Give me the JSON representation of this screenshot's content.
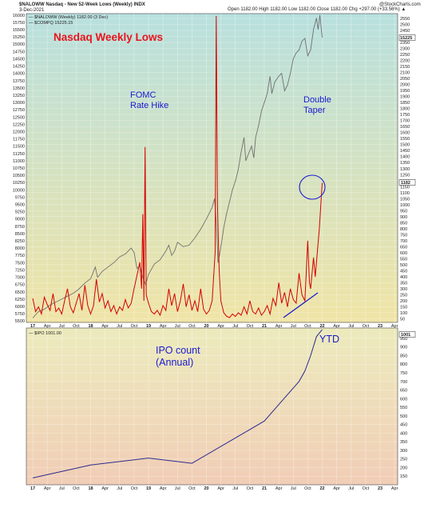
{
  "header": {
    "symbol_line": "$NALOWW Nasdaq - New 52-Week Lows (Weekly) INDX",
    "date": "3-Dec-2021",
    "ohlc": "Open 1182.00 High 1182.00 Low 1182.00 Close 1182.00 Chg +297.00 (+33.56%) ▲",
    "credit": "@StockCharts.com",
    "legend_main": "— $NALOWW (Weekly) 1182.00 (3 Dec)",
    "legend_compq": "— $COMPQ 15225.15",
    "legend_ipo": "— $IPO 1001.00"
  },
  "annotations": {
    "title": "Nasdaq Weekly Lows",
    "fomc": "FOMC\nRate Hike",
    "double_taper": "Double\nTaper",
    "ipo_label": "IPO count\n(Annual)",
    "ytd": "YTD"
  },
  "colors": {
    "lows_line": "#d40000",
    "compq_line": "#707070",
    "ipo_line": "#2a2a8f",
    "annotation_red": "#e8141e",
    "annotation_blue": "#1a1ad0",
    "top_bg_top": "#b8e0de",
    "top_bg_bottom": "#f0e4a6",
    "bottom_bg_top": "#ecebbd",
    "bottom_bg_bottom": "#f1cdb6"
  },
  "chart_data": [
    {
      "type": "line",
      "panel": "top",
      "x_tick_labels": [
        "17",
        "Apr",
        "Jul",
        "Oct",
        "18",
        "Apr",
        "Jul",
        "Oct",
        "19",
        "Apr",
        "Jul",
        "Oct",
        "20",
        "Apr",
        "Jul",
        "Oct",
        "21",
        "Apr",
        "Jul",
        "Oct",
        "22",
        "Apr",
        "Jul",
        "Oct",
        "23",
        "Apr"
      ],
      "left_axis": {
        "label_values": [
          5500,
          5750,
          6000,
          6250,
          6500,
          6750,
          7000,
          7250,
          7500,
          7750,
          8000,
          8250,
          8500,
          8750,
          9000,
          9250,
          9500,
          9750,
          10000,
          10250,
          10500,
          10750,
          11000,
          11250,
          11500,
          11750,
          12000,
          12250,
          12500,
          12750,
          13000,
          13250,
          13500,
          13750,
          14000,
          14250,
          14500,
          14750,
          15000,
          15250,
          15500,
          15750,
          16000
        ],
        "ylim": [
          5450,
          16050
        ]
      },
      "right_axis": {
        "label_values": [
          50,
          100,
          150,
          200,
          250,
          300,
          350,
          400,
          450,
          500,
          550,
          600,
          650,
          700,
          750,
          800,
          850,
          900,
          950,
          1000,
          1050,
          1100,
          1150,
          1200,
          1250,
          1300,
          1350,
          1400,
          1450,
          1500,
          1550,
          1600,
          1650,
          1700,
          1750,
          1800,
          1850,
          1900,
          1950,
          2000,
          2050,
          2100,
          2150,
          2200,
          2250,
          2300,
          2350,
          2400,
          2450,
          2500,
          2550
        ],
        "ylim": [
          20,
          2590
        ]
      },
      "series": [
        {
          "name": "$NALOWW (Weekly)",
          "axis": "right",
          "last_value": 1182,
          "points": [
            [
              2017.0,
              220
            ],
            [
              2017.05,
              110
            ],
            [
              2017.1,
              150
            ],
            [
              2017.15,
              90
            ],
            [
              2017.2,
              230
            ],
            [
              2017.25,
              170
            ],
            [
              2017.3,
              120
            ],
            [
              2017.35,
              260
            ],
            [
              2017.4,
              110
            ],
            [
              2017.45,
              140
            ],
            [
              2017.5,
              90
            ],
            [
              2017.55,
              200
            ],
            [
              2017.6,
              300
            ],
            [
              2017.65,
              150
            ],
            [
              2017.7,
              100
            ],
            [
              2017.75,
              180
            ],
            [
              2017.8,
              260
            ],
            [
              2017.85,
              120
            ],
            [
              2017.9,
              330
            ],
            [
              2017.95,
              160
            ],
            [
              2018.0,
              90
            ],
            [
              2018.05,
              160
            ],
            [
              2018.1,
              380
            ],
            [
              2018.15,
              190
            ],
            [
              2018.2,
              260
            ],
            [
              2018.25,
              140
            ],
            [
              2018.3,
              200
            ],
            [
              2018.35,
              110
            ],
            [
              2018.4,
              160
            ],
            [
              2018.45,
              90
            ],
            [
              2018.5,
              150
            ],
            [
              2018.55,
              120
            ],
            [
              2018.6,
              210
            ],
            [
              2018.65,
              140
            ],
            [
              2018.7,
              180
            ],
            [
              2018.75,
              300
            ],
            [
              2018.8,
              410
            ],
            [
              2018.85,
              520
            ],
            [
              2018.88,
              300
            ],
            [
              2018.9,
              920
            ],
            [
              2018.92,
              200
            ],
            [
              2018.94,
              1480
            ],
            [
              2018.96,
              250
            ],
            [
              2019.0,
              180
            ],
            [
              2019.05,
              110
            ],
            [
              2019.1,
              90
            ],
            [
              2019.15,
              120
            ],
            [
              2019.2,
              80
            ],
            [
              2019.25,
              160
            ],
            [
              2019.3,
              120
            ],
            [
              2019.35,
              300
            ],
            [
              2019.4,
              160
            ],
            [
              2019.45,
              260
            ],
            [
              2019.5,
              110
            ],
            [
              2019.55,
              200
            ],
            [
              2019.6,
              340
            ],
            [
              2019.65,
              150
            ],
            [
              2019.7,
              250
            ],
            [
              2019.75,
              120
            ],
            [
              2019.8,
              200
            ],
            [
              2019.85,
              110
            ],
            [
              2019.9,
              300
            ],
            [
              2019.95,
              130
            ],
            [
              2020.0,
              90
            ],
            [
              2020.05,
              120
            ],
            [
              2020.1,
              200
            ],
            [
              2020.15,
              600
            ],
            [
              2020.17,
              2570
            ],
            [
              2020.19,
              1000
            ],
            [
              2020.22,
              450
            ],
            [
              2020.25,
              200
            ],
            [
              2020.3,
              100
            ],
            [
              2020.35,
              70
            ],
            [
              2020.4,
              60
            ],
            [
              2020.45,
              90
            ],
            [
              2020.5,
              70
            ],
            [
              2020.55,
              100
            ],
            [
              2020.6,
              80
            ],
            [
              2020.65,
              150
            ],
            [
              2020.7,
              90
            ],
            [
              2020.75,
              200
            ],
            [
              2020.8,
              110
            ],
            [
              2020.85,
              90
            ],
            [
              2020.9,
              140
            ],
            [
              2020.95,
              80
            ],
            [
              2021.0,
              110
            ],
            [
              2021.05,
              160
            ],
            [
              2021.1,
              90
            ],
            [
              2021.15,
              220
            ],
            [
              2021.2,
              160
            ],
            [
              2021.25,
              350
            ],
            [
              2021.3,
              180
            ],
            [
              2021.35,
              270
            ],
            [
              2021.4,
              150
            ],
            [
              2021.45,
              300
            ],
            [
              2021.5,
              210
            ],
            [
              2021.55,
              180
            ],
            [
              2021.6,
              430
            ],
            [
              2021.65,
              250
            ],
            [
              2021.7,
              200
            ],
            [
              2021.75,
              700
            ],
            [
              2021.78,
              350
            ],
            [
              2021.8,
              300
            ],
            [
              2021.85,
              560
            ],
            [
              2021.88,
              400
            ],
            [
              2021.9,
              520
            ],
            [
              2021.95,
              800
            ],
            [
              2022.0,
              1182
            ]
          ]
        },
        {
          "name": "$COMPQ",
          "axis": "left",
          "last_value": 15225.15,
          "points": [
            [
              2017.0,
              5600
            ],
            [
              2017.1,
              5820
            ],
            [
              2017.2,
              5900
            ],
            [
              2017.3,
              6050
            ],
            [
              2017.4,
              6150
            ],
            [
              2017.5,
              6250
            ],
            [
              2017.6,
              6350
            ],
            [
              2017.7,
              6450
            ],
            [
              2017.8,
              6600
            ],
            [
              2017.9,
              6800
            ],
            [
              2018.0,
              6950
            ],
            [
              2018.08,
              7350
            ],
            [
              2018.12,
              7000
            ],
            [
              2018.2,
              7200
            ],
            [
              2018.3,
              7350
            ],
            [
              2018.4,
              7500
            ],
            [
              2018.5,
              7700
            ],
            [
              2018.6,
              7800
            ],
            [
              2018.7,
              8000
            ],
            [
              2018.75,
              7850
            ],
            [
              2018.8,
              7300
            ],
            [
              2018.85,
              7400
            ],
            [
              2018.9,
              7000
            ],
            [
              2018.95,
              6750
            ],
            [
              2019.0,
              7100
            ],
            [
              2019.1,
              7450
            ],
            [
              2019.2,
              7600
            ],
            [
              2019.3,
              7900
            ],
            [
              2019.35,
              8100
            ],
            [
              2019.4,
              7750
            ],
            [
              2019.45,
              7900
            ],
            [
              2019.5,
              8200
            ],
            [
              2019.6,
              8050
            ],
            [
              2019.7,
              8100
            ],
            [
              2019.8,
              8350
            ],
            [
              2019.9,
              8650
            ],
            [
              2020.0,
              9000
            ],
            [
              2020.1,
              9400
            ],
            [
              2020.14,
              9700
            ],
            [
              2020.17,
              8900
            ],
            [
              2020.2,
              7500
            ],
            [
              2020.23,
              7800
            ],
            [
              2020.27,
              8300
            ],
            [
              2020.3,
              8700
            ],
            [
              2020.35,
              9200
            ],
            [
              2020.4,
              9600
            ],
            [
              2020.45,
              10000
            ],
            [
              2020.5,
              10300
            ],
            [
              2020.55,
              10700
            ],
            [
              2020.6,
              11300
            ],
            [
              2020.65,
              11800
            ],
            [
              2020.68,
              11000
            ],
            [
              2020.72,
              11200
            ],
            [
              2020.78,
              11500
            ],
            [
              2020.82,
              11100
            ],
            [
              2020.85,
              11800
            ],
            [
              2020.9,
              12200
            ],
            [
              2020.95,
              12700
            ],
            [
              2021.0,
              13000
            ],
            [
              2021.05,
              13300
            ],
            [
              2021.1,
              13900
            ],
            [
              2021.13,
              13300
            ],
            [
              2021.18,
              13700
            ],
            [
              2021.25,
              13900
            ],
            [
              2021.3,
              14000
            ],
            [
              2021.35,
              13400
            ],
            [
              2021.4,
              13600
            ],
            [
              2021.45,
              14000
            ],
            [
              2021.5,
              14500
            ],
            [
              2021.55,
              14700
            ],
            [
              2021.6,
              14800
            ],
            [
              2021.65,
              15100
            ],
            [
              2021.7,
              15200
            ],
            [
              2021.75,
              14600
            ],
            [
              2021.8,
              14800
            ],
            [
              2021.85,
              15500
            ],
            [
              2021.9,
              15900
            ],
            [
              2021.93,
              15500
            ],
            [
              2021.96,
              16000
            ],
            [
              2021.99,
              15400
            ],
            [
              2022.0,
              15225
            ]
          ]
        }
      ]
    },
    {
      "type": "line",
      "panel": "bottom",
      "x_tick_labels": [
        "17",
        "Apr",
        "Jul",
        "Oct",
        "18",
        "Apr",
        "Jul",
        "Oct",
        "19",
        "Apr",
        "Jul",
        "Oct",
        "20",
        "Apr",
        "Jul",
        "Oct",
        "21",
        "Apr",
        "Jul",
        "Oct",
        "22",
        "Apr",
        "Jul",
        "Oct",
        "23",
        "Apr"
      ],
      "right_axis": {
        "label_values": [
          150,
          200,
          250,
          300,
          350,
          400,
          450,
          500,
          550,
          600,
          650,
          700,
          750,
          800,
          850,
          900,
          950
        ],
        "ylim": [
          100,
          1010
        ]
      },
      "series": [
        {
          "name": "$IPO",
          "last_value": 1001,
          "points": [
            [
              2017.0,
              140
            ],
            [
              2018.0,
              215
            ],
            [
              2019.0,
              255
            ],
            [
              2019.75,
              225
            ],
            [
              2021.0,
              470
            ],
            [
              2021.6,
              700
            ],
            [
              2021.7,
              760
            ],
            [
              2021.8,
              850
            ],
            [
              2021.9,
              960
            ],
            [
              2022.0,
              1001
            ]
          ]
        }
      ]
    }
  ]
}
